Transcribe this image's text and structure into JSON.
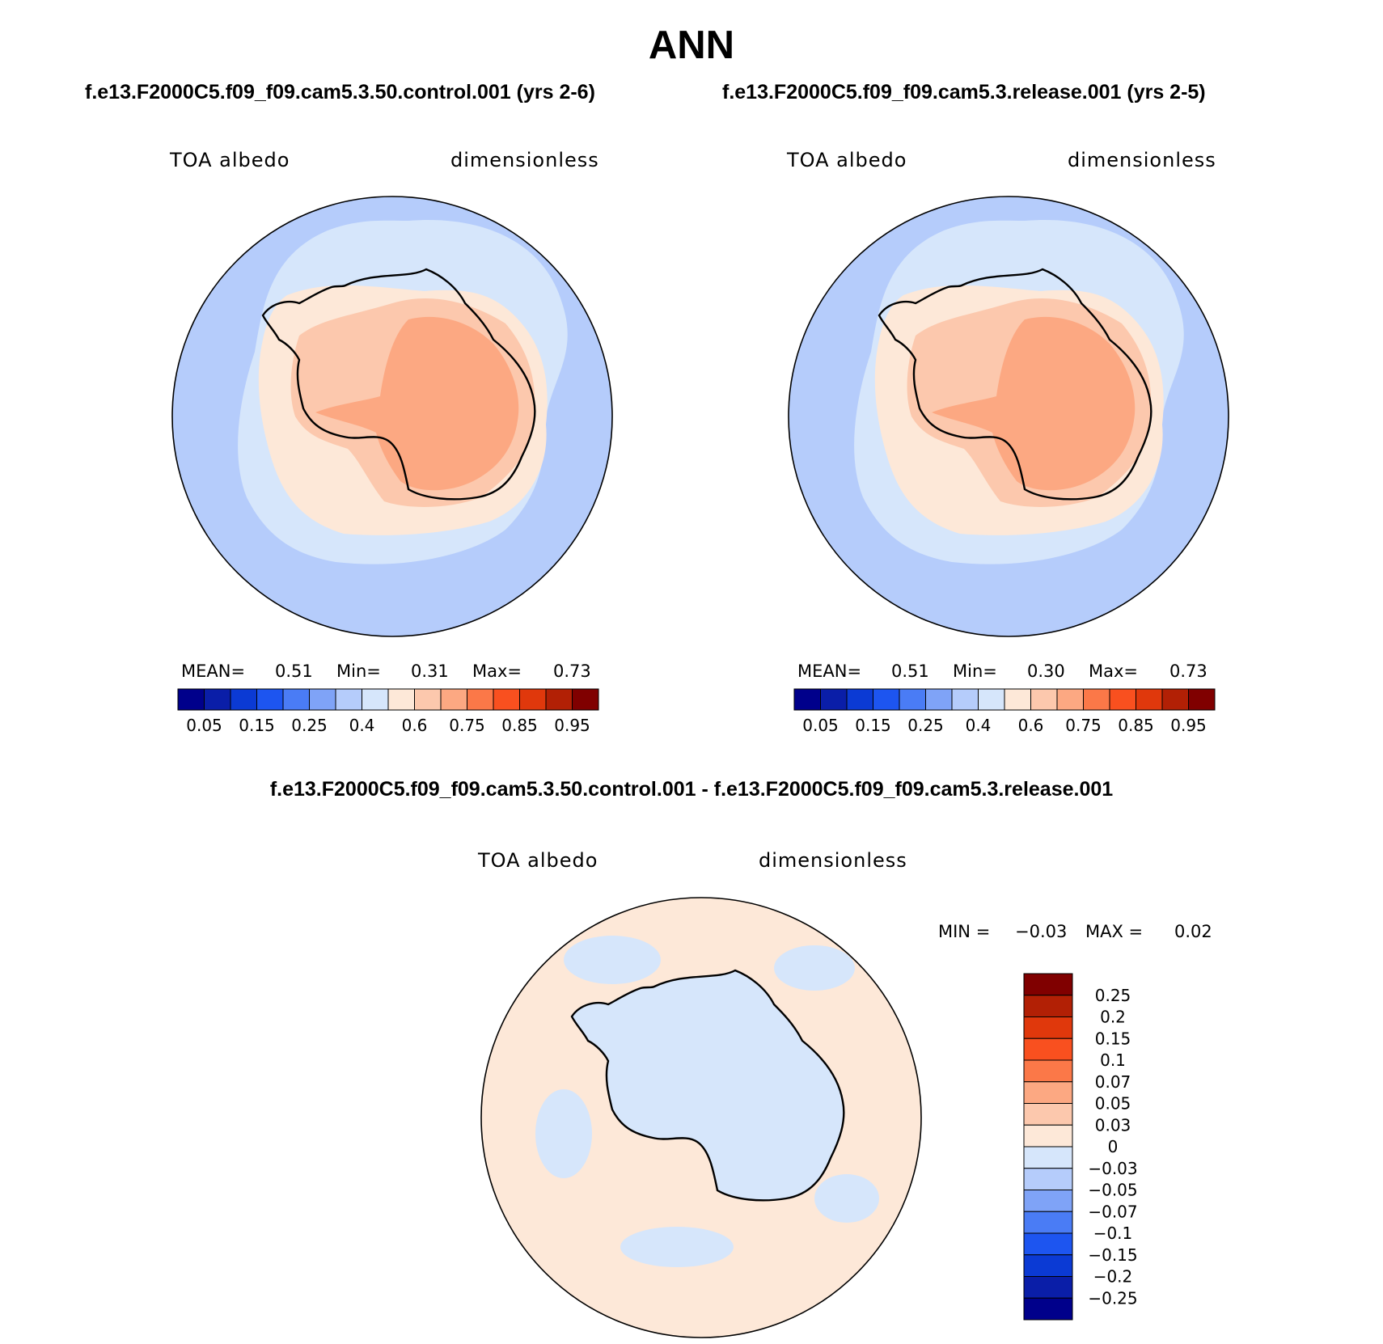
{
  "header": {
    "title": "ANN",
    "left_run": "f.e13.F2000C5.f09_f09.cam5.3.50.control.001 (yrs 2-6)",
    "right_run": "f.e13.F2000C5.f09_f09.cam5.3.release.001 (yrs 2-5)",
    "diff_title": "f.e13.F2000C5.f09_f09.cam5.3.50.control.001 - f.e13.F2000C5.f09_f09.cam5.3.release.001"
  },
  "chart_data": [
    {
      "type": "heatmap",
      "projection": "south polar stereographic",
      "variable": "TOA albedo",
      "units": "dimensionless",
      "stats": {
        "mean_label": "MEAN=",
        "mean": "0.51",
        "min_label": "Min=",
        "min": "0.31",
        "max_label": "Max=",
        "max": "0.73"
      },
      "colorbar": {
        "orientation": "horizontal",
        "levels": [
          "0.05",
          "0.15",
          "0.25",
          "0.4",
          "0.6",
          "0.75",
          "0.85",
          "0.95"
        ],
        "colors": [
          "#00008b",
          "#0a1ea8",
          "#0b3ad4",
          "#1d55f0",
          "#4a7cf5",
          "#7fa3f7",
          "#b5ccfb",
          "#d6e6fb",
          "#fde8d8",
          "#fcc8ad",
          "#fca882",
          "#fb7848",
          "#f9501f",
          "#e0380c",
          "#b22005",
          "#800000"
        ]
      }
    },
    {
      "type": "heatmap",
      "projection": "south polar stereographic",
      "variable": "TOA albedo",
      "units": "dimensionless",
      "stats": {
        "mean_label": "MEAN=",
        "mean": "0.51",
        "min_label": "Min=",
        "min": "0.30",
        "max_label": "Max=",
        "max": "0.73"
      },
      "colorbar": {
        "orientation": "horizontal",
        "levels": [
          "0.05",
          "0.15",
          "0.25",
          "0.4",
          "0.6",
          "0.75",
          "0.85",
          "0.95"
        ],
        "colors": [
          "#00008b",
          "#0a1ea8",
          "#0b3ad4",
          "#1d55f0",
          "#4a7cf5",
          "#7fa3f7",
          "#b5ccfb",
          "#d6e6fb",
          "#fde8d8",
          "#fcc8ad",
          "#fca882",
          "#fb7848",
          "#f9501f",
          "#e0380c",
          "#b22005",
          "#800000"
        ]
      }
    },
    {
      "type": "heatmap",
      "projection": "south polar stereographic",
      "variable": "TOA albedo",
      "units": "dimensionless",
      "stats": {
        "min_label": "MIN =",
        "min": "−0.03",
        "max_label": "MAX =",
        "max": "0.02"
      },
      "colorbar": {
        "orientation": "vertical",
        "levels": [
          "0.25",
          "0.2",
          "0.15",
          "0.1",
          "0.07",
          "0.05",
          "0.03",
          "0",
          "−0.03",
          "−0.05",
          "−0.07",
          "−0.1",
          "−0.15",
          "−0.2",
          "−0.25"
        ],
        "colors": [
          "#800000",
          "#b22005",
          "#e0380c",
          "#f9501f",
          "#fb7848",
          "#fca882",
          "#fcc8ad",
          "#fde8d8",
          "#d6e6fb",
          "#b5ccfb",
          "#7fa3f7",
          "#4a7cf5",
          "#1d55f0",
          "#0b3ad4",
          "#0a1ea8",
          "#00008b"
        ]
      }
    }
  ]
}
